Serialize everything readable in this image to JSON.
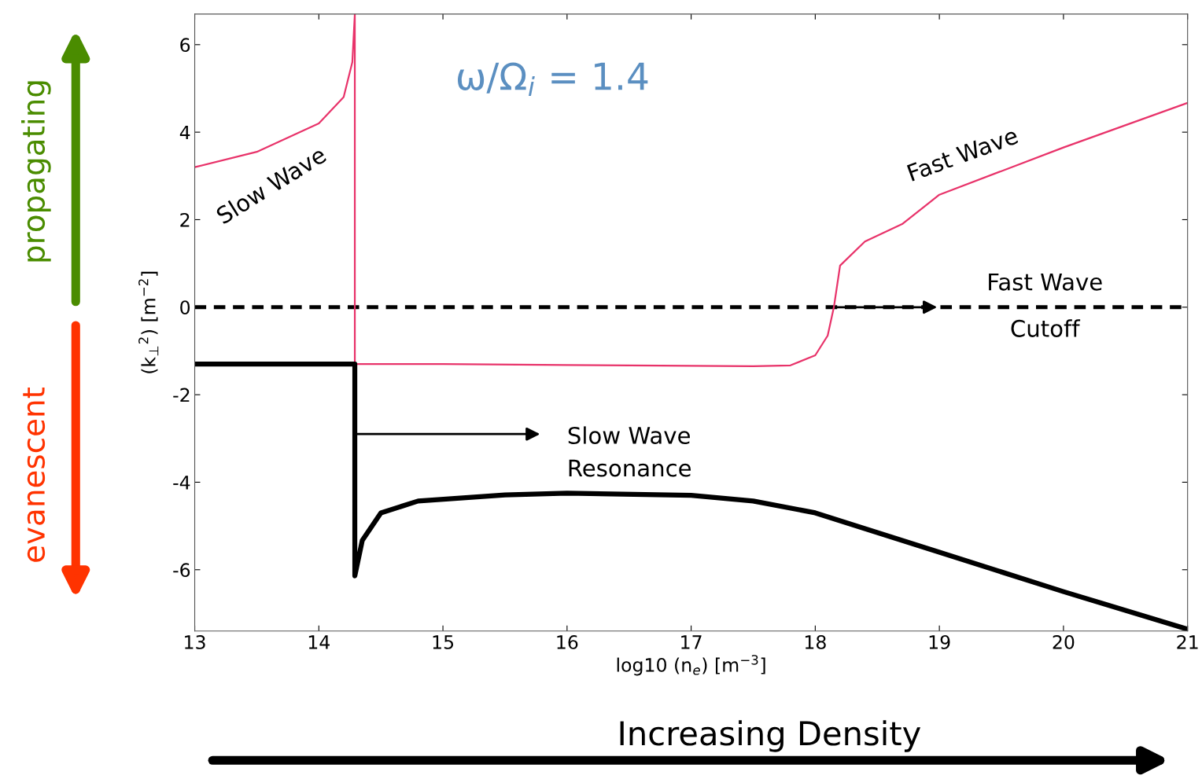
{
  "chart_data": {
    "type": "line",
    "xlabel": "log10 (n$_{e}$) [m$^{−3}$]",
    "ylabel": "(k$_{⊥}$$^{2}$) [m$^{−2}$]",
    "xlim": [
      13,
      21
    ],
    "ylim": [
      -7.4,
      6.7
    ],
    "xticks": [
      13,
      14,
      15,
      16,
      17,
      18,
      19,
      20,
      21
    ],
    "yticks": [
      -6,
      -4,
      -2,
      0,
      2,
      4,
      6
    ],
    "grid": false,
    "series": [
      {
        "color": "#e8336a",
        "x": [
          13,
          13.5,
          14.0,
          14.2,
          14.27,
          14.29,
          14.29,
          15,
          16,
          17,
          17.5,
          17.8,
          18.0,
          18.1,
          18.15,
          18.2,
          18.4,
          18.7,
          19.0,
          20,
          21
        ],
        "values": [
          3.2,
          3.55,
          4.2,
          4.8,
          5.6,
          6.7,
          -1.3,
          -1.3,
          -1.32,
          -1.34,
          -1.35,
          -1.33,
          -1.1,
          -0.65,
          0,
          0.95,
          1.5,
          1.9,
          2.57,
          3.65,
          4.67
        ]
      },
      {
        "color": "#000000",
        "x": [
          13,
          14.29,
          14.29,
          14.35,
          14.5,
          14.8,
          15.5,
          16,
          17,
          17.5,
          18,
          18.5,
          19,
          20,
          21
        ],
        "values": [
          -1.3,
          -1.3,
          -6.14,
          -5.33,
          -4.7,
          -4.43,
          -4.29,
          -4.25,
          -4.3,
          -4.43,
          -4.7,
          -5.15,
          -5.6,
          -6.5,
          -7.36
        ]
      }
    ],
    "ref_lines": [
      {
        "axis": "y",
        "value": 0,
        "color": "#000000",
        "line_style": "dashed"
      }
    ],
    "annotations": [
      "Slow Wave",
      "ω/Ω$_{i}$ = 1.4",
      "Fast Wave",
      "Fast Wave\nCutoff",
      "Slow Wave\nResonance",
      "propagating",
      "evanescent",
      "Increasing Density"
    ]
  }
}
